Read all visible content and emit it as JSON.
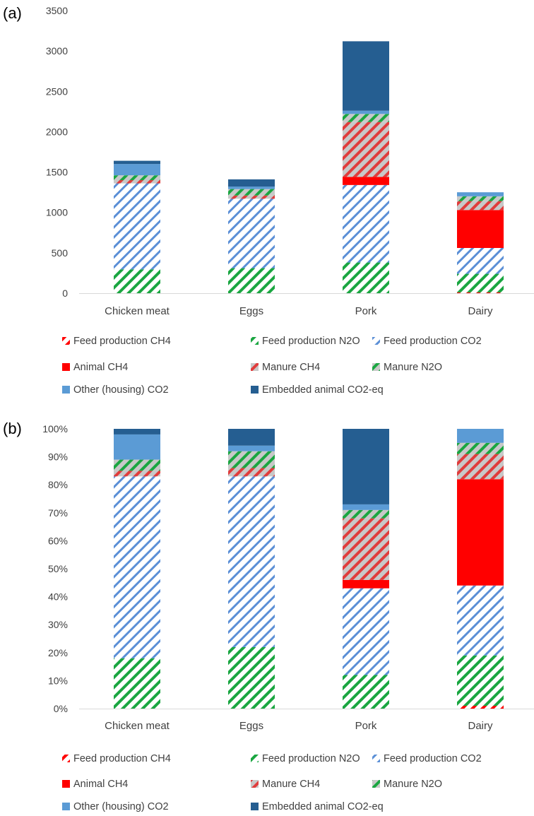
{
  "panels": [
    {
      "label": "(a)",
      "chart_data": {
        "type": "bar",
        "stacked": true,
        "categories": [
          "Chicken meat",
          "Eggs",
          "Pork",
          "Dairy"
        ],
        "ylim": [
          0,
          3500
        ],
        "yticks": [
          0,
          500,
          1000,
          1500,
          2000,
          2500,
          3000,
          3500
        ],
        "ytick_labels": [
          "0",
          "500",
          "1000",
          "1500",
          "2000",
          "2500",
          "3000",
          "3500"
        ],
        "grid": false,
        "legend_position": "bottom",
        "series": [
          {
            "name": "Feed production CH4",
            "values": [
              0,
              0,
              0,
              10
            ]
          },
          {
            "name": "Feed production N2O",
            "values": [
              295,
              310,
              380,
              230
            ]
          },
          {
            "name": "Feed production CO2",
            "values": [
              1065,
              860,
              960,
              320
            ]
          },
          {
            "name": "Animal CH4",
            "values": [
              0,
              0,
              100,
              470
            ]
          },
          {
            "name": "Manure CH4",
            "values": [
              40,
              40,
              680,
              110
            ]
          },
          {
            "name": "Manure N2O",
            "values": [
              60,
              80,
              100,
              60
            ]
          },
          {
            "name": "Other (housing) CO2",
            "values": [
              140,
              30,
              40,
              50
            ]
          },
          {
            "name": "Embedded animal CO2-eq",
            "values": [
              40,
              90,
              860,
              0
            ]
          }
        ]
      }
    },
    {
      "label": "(b)",
      "chart_data": {
        "type": "bar",
        "stacked": true,
        "categories": [
          "Chicken meat",
          "Eggs",
          "Pork",
          "Dairy"
        ],
        "ylim": [
          0,
          100
        ],
        "yticks": [
          0,
          10,
          20,
          30,
          40,
          50,
          60,
          70,
          80,
          90,
          100
        ],
        "ytick_labels": [
          "0%",
          "10%",
          "20%",
          "30%",
          "40%",
          "50%",
          "60%",
          "70%",
          "80%",
          "90%",
          "100%"
        ],
        "grid": false,
        "legend_position": "bottom",
        "series": [
          {
            "name": "Feed production CH4",
            "values": [
              0,
              0,
              0,
              1
            ]
          },
          {
            "name": "Feed production N2O",
            "values": [
              18,
              22,
              12,
              18
            ]
          },
          {
            "name": "Feed production CO2",
            "values": [
              65,
              61,
              31,
              25
            ]
          },
          {
            "name": "Animal CH4",
            "values": [
              0,
              0,
              3,
              38
            ]
          },
          {
            "name": "Manure CH4",
            "values": [
              2,
              3,
              22,
              9
            ]
          },
          {
            "name": "Manure N2O",
            "values": [
              4,
              6,
              3,
              4
            ]
          },
          {
            "name": "Other (housing) CO2",
            "values": [
              9,
              2,
              2,
              5
            ]
          },
          {
            "name": "Embedded animal CO2-eq",
            "values": [
              2,
              6,
              27,
              0
            ]
          }
        ]
      }
    }
  ],
  "legend_styles": [
    {
      "name": "Feed production CH4",
      "color": "#ff0000",
      "fill": "diag-red"
    },
    {
      "name": "Feed production N2O",
      "color": "#1aa641",
      "fill": "diag-green"
    },
    {
      "name": "Feed production CO2",
      "color": "#5b8fd6",
      "fill": "diag-blue"
    },
    {
      "name": "Animal CH4",
      "color": "#ff0000",
      "fill": "solid-red"
    },
    {
      "name": "Manure CH4",
      "color": "#e03c3c",
      "fill": "diag-redgray"
    },
    {
      "name": "Manure N2O",
      "color": "#1aa641",
      "fill": "diag-greengray"
    },
    {
      "name": "Other (housing) CO2",
      "color": "#5b9bd5",
      "fill": "solid-lightblue"
    },
    {
      "name": "Embedded animal CO2-eq",
      "color": "#255e91",
      "fill": "solid-darkblue"
    }
  ]
}
